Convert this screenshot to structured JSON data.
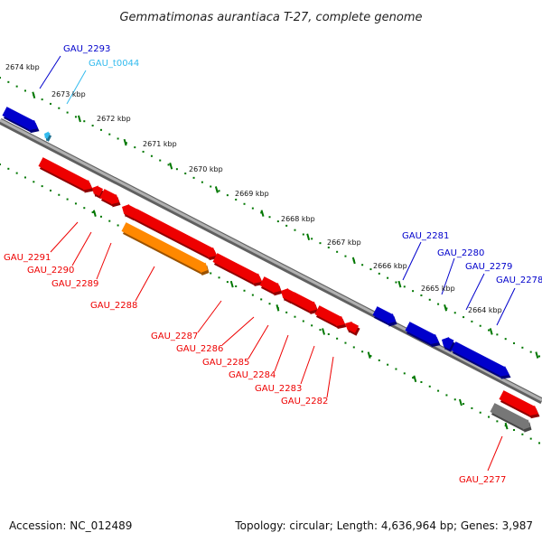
{
  "title": "Gemmatimonas aurantiaca T-27, complete genome",
  "accession": "Accession: NC_012489",
  "summary": "Topology: circular; Length: 4,636,964 bp; Genes: 3,987",
  "colors": {
    "forward_gene": "#0000cc",
    "trna": "#33bbee",
    "reverse_gene": "#ee0000",
    "rrna_like": "#ff8800",
    "pseudogene": "#777777",
    "backbone": "#888888",
    "ticks": "#007700"
  },
  "kbp_ticks": [
    "2674 kbp",
    "2673 kbp",
    "2672 kbp",
    "2671 kbp",
    "2670 kbp",
    "2669 kbp",
    "2668 kbp",
    "2667 kbp",
    "2666 kbp",
    "2665 kbp",
    "2664 kbp"
  ],
  "forward_labels": [
    "GAU_2293",
    "GAU_t0044",
    "GAU_2281",
    "GAU_2280",
    "GAU_2279",
    "GAU_2278"
  ],
  "reverse_labels": [
    "GAU_2291",
    "GAU_2290",
    "GAU_2289",
    "GAU_2288",
    "GAU_2287",
    "GAU_2286",
    "GAU_2285",
    "GAU_2284",
    "GAU_2283",
    "GAU_2282",
    "GAU_2277"
  ]
}
